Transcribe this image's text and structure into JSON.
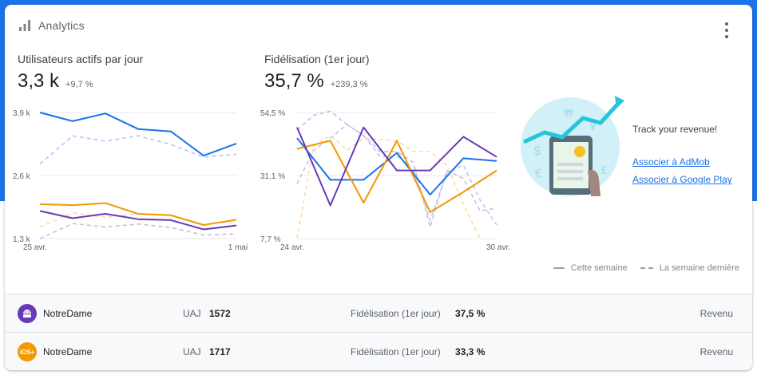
{
  "header": {
    "title": "Analytics",
    "icon": "bar-chart-icon"
  },
  "metrics": [
    {
      "title": "Utilisateurs actifs par jour",
      "value": "3,3 k",
      "delta": "+9,7 %"
    },
    {
      "title": "Fidélisation (1er jour)",
      "value": "35,7 %",
      "delta": "+239,3 %"
    }
  ],
  "promo": {
    "title": "Track your revenue!",
    "link_admob": "Associer à AdMob",
    "link_play": "Associer à Google Play"
  },
  "legend": {
    "current": "Cette semaine",
    "previous": "La semaine dernière"
  },
  "colors": {
    "blue": "#1a73e8",
    "orange": "#f29900",
    "purple": "#673ab7",
    "blue_light": "#a8c7fa",
    "orange_light": "#fdd8a8",
    "purple_light": "#c7b8e3"
  },
  "chart_data": [
    {
      "type": "line",
      "title": "Utilisateurs actifs par jour",
      "y_ticks": [
        "3,9 k",
        "2,6 k",
        "1,3 k"
      ],
      "ylim": [
        1300,
        3900
      ],
      "x_labels": [
        "25 avr.",
        "1 mai"
      ],
      "x": [
        0,
        1,
        2,
        3,
        4,
        5,
        6
      ],
      "series": [
        {
          "color": "blue",
          "style": "solid",
          "values": [
            3900,
            3720,
            3880,
            3560,
            3510,
            3010,
            3260
          ]
        },
        {
          "color": "orange",
          "style": "solid",
          "values": [
            2010,
            1990,
            2030,
            1810,
            1780,
            1580,
            1690
          ]
        },
        {
          "color": "purple",
          "style": "solid",
          "values": [
            1870,
            1720,
            1810,
            1700,
            1680,
            1490,
            1570
          ]
        },
        {
          "color": "blue_light",
          "style": "dashed",
          "values": [
            2840,
            3420,
            3310,
            3420,
            3240,
            2980,
            3040
          ]
        },
        {
          "color": "orange_light",
          "style": "dashed",
          "values": [
            1540,
            1830,
            1740,
            1810,
            1790,
            1590,
            1660
          ]
        },
        {
          "color": "purple_light",
          "style": "dashed",
          "values": [
            1300,
            1610,
            1540,
            1600,
            1530,
            1370,
            1400
          ]
        }
      ]
    },
    {
      "type": "line",
      "title": "Fidélisation (1er jour)",
      "y_ticks": [
        "54,5 %",
        "31,1 %",
        "7,7 %"
      ],
      "ylim": [
        7.7,
        54.5
      ],
      "x_labels": [
        "24 avr.",
        "30 avr."
      ],
      "x": [
        0,
        1,
        2,
        3,
        4,
        5,
        6,
        7,
        8,
        9,
        10,
        11,
        12
      ],
      "series": [
        {
          "color": "blue",
          "style": "solid",
          "values": [
            45,
            null,
            29.5,
            null,
            29.5,
            null,
            39.5,
            null,
            24,
            null,
            37.5,
            null,
            36.5
          ]
        },
        {
          "color": "orange",
          "style": "solid",
          "values": [
            41,
            null,
            44,
            null,
            21,
            null,
            44,
            null,
            17.5,
            null,
            25,
            null,
            33
          ]
        },
        {
          "color": "purple",
          "style": "solid",
          "values": [
            49,
            null,
            20,
            null,
            49,
            null,
            33,
            null,
            33,
            null,
            45.5,
            null,
            38
          ]
        },
        {
          "color": "blue_light",
          "style": "dashed",
          "values": [
            28,
            40.5,
            45,
            50,
            46,
            38,
            38.5,
            33,
            14.5,
            32,
            35,
            22,
            12.8
          ]
        },
        {
          "color": "orange_light",
          "style": "dashed",
          "values": [
            7.7,
            42,
            46,
            40.5,
            45,
            44.5,
            44,
            40,
            40,
            35,
            20.5,
            7.7,
            null
          ]
        },
        {
          "color": "purple_light",
          "style": "dashed",
          "values": [
            48,
            53.5,
            55,
            50,
            46,
            40,
            40,
            36,
            12,
            33,
            30,
            18,
            19
          ]
        }
      ]
    }
  ],
  "apps": [
    {
      "name": "NotreDame",
      "platform_icon": "android-icon",
      "icon_color": "#673ab7",
      "uaj_label": "UAJ",
      "uaj_value": "1572",
      "fid_label": "Fidélisation (1er jour)",
      "fid_value": "37,5 %",
      "action": "Revenu"
    },
    {
      "name": "NotreDame",
      "platform_icon": "ios-icon",
      "icon_text": "iOS+",
      "icon_color": "#f29900",
      "uaj_label": "UAJ",
      "uaj_value": "1717",
      "fid_label": "Fidélisation (1er jour)",
      "fid_value": "33,3 %",
      "action": "Revenu"
    }
  ]
}
